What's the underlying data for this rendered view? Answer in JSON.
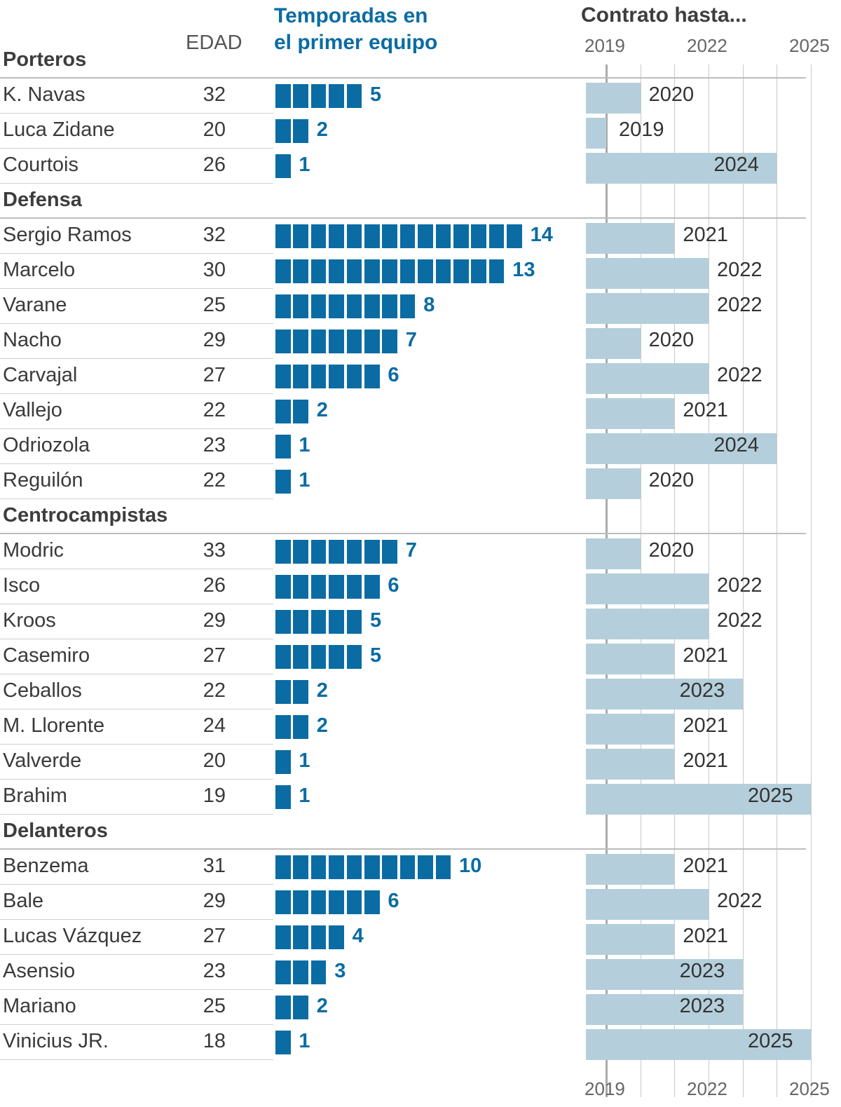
{
  "headers": {
    "age": "EDAD",
    "seasons_line1": "Temporadas en",
    "seasons_line2": "el primer equipo",
    "contract": "Contrato hasta..."
  },
  "colors": {
    "seasons": "#0a6ca3",
    "contract": "#b4cfdb",
    "text": "#3a3a3a"
  },
  "chart_data": {
    "type": "table",
    "contract_axis": {
      "ticks": [
        "2019",
        "2022",
        "2025"
      ],
      "range": [
        2019,
        2025
      ],
      "grid": "yearly"
    },
    "groups": [
      {
        "name": "Porteros",
        "players": [
          {
            "name": "K. Navas",
            "age": "32",
            "seasons": 5,
            "seasons_label": "5",
            "contract": 2020,
            "contract_label": "2020"
          },
          {
            "name": "Luca Zidane",
            "age": "20",
            "seasons": 2,
            "seasons_label": "2",
            "contract": 2019,
            "contract_label": "2019"
          },
          {
            "name": "Courtois",
            "age": "26",
            "seasons": 1,
            "seasons_label": "1",
            "contract": 2024,
            "contract_label": "2024"
          }
        ]
      },
      {
        "name": "Defensa",
        "players": [
          {
            "name": "Sergio Ramos",
            "age": "32",
            "seasons": 14,
            "seasons_label": "14",
            "contract": 2021,
            "contract_label": "2021"
          },
          {
            "name": "Marcelo",
            "age": "30",
            "seasons": 13,
            "seasons_label": "13",
            "contract": 2022,
            "contract_label": "2022"
          },
          {
            "name": "Varane",
            "age": "25",
            "seasons": 8,
            "seasons_label": "8",
            "contract": 2022,
            "contract_label": "2022"
          },
          {
            "name": "Nacho",
            "age": "29",
            "seasons": 7,
            "seasons_label": "7",
            "contract": 2020,
            "contract_label": "2020"
          },
          {
            "name": "Carvajal",
            "age": "27",
            "seasons": 6,
            "seasons_label": "6",
            "contract": 2022,
            "contract_label": "2022"
          },
          {
            "name": "Vallejo",
            "age": "22",
            "seasons": 2,
            "seasons_label": "2",
            "contract": 2021,
            "contract_label": "2021"
          },
          {
            "name": "Odriozola",
            "age": "23",
            "seasons": 1,
            "seasons_label": "1",
            "contract": 2024,
            "contract_label": "2024"
          },
          {
            "name": "Reguilón",
            "age": "22",
            "seasons": 1,
            "seasons_label": "1",
            "contract": 2020,
            "contract_label": "2020"
          }
        ]
      },
      {
        "name": "Centrocampistas",
        "players": [
          {
            "name": "Modric",
            "age": "33",
            "seasons": 7,
            "seasons_label": "7",
            "contract": 2020,
            "contract_label": "2020"
          },
          {
            "name": "Isco",
            "age": "26",
            "seasons": 6,
            "seasons_label": "6",
            "contract": 2022,
            "contract_label": "2022"
          },
          {
            "name": "Kroos",
            "age": "29",
            "seasons": 5,
            "seasons_label": "5",
            "contract": 2022,
            "contract_label": "2022"
          },
          {
            "name": "Casemiro",
            "age": "27",
            "seasons": 5,
            "seasons_label": "5",
            "contract": 2021,
            "contract_label": "2021"
          },
          {
            "name": "Ceballos",
            "age": "22",
            "seasons": 2,
            "seasons_label": "2",
            "contract": 2023,
            "contract_label": "2023"
          },
          {
            "name": "M. Llorente",
            "age": "24",
            "seasons": 2,
            "seasons_label": "2",
            "contract": 2021,
            "contract_label": "2021"
          },
          {
            "name": "Valverde",
            "age": "20",
            "seasons": 1,
            "seasons_label": "1",
            "contract": 2021,
            "contract_label": "2021"
          },
          {
            "name": "Brahim",
            "age": "19",
            "seasons": 1,
            "seasons_label": "1",
            "contract": 2025,
            "contract_label": "2025"
          }
        ]
      },
      {
        "name": "Delanteros",
        "players": [
          {
            "name": "Benzema",
            "age": "31",
            "seasons": 10,
            "seasons_label": "10",
            "contract": 2021,
            "contract_label": "2021"
          },
          {
            "name": "Bale",
            "age": "29",
            "seasons": 6,
            "seasons_label": "6",
            "contract": 2022,
            "contract_label": "2022"
          },
          {
            "name": "Lucas Vázquez",
            "age": "27",
            "seasons": 4,
            "seasons_label": "4",
            "contract": 2021,
            "contract_label": "2021"
          },
          {
            "name": "Asensio",
            "age": "23",
            "seasons": 3,
            "seasons_label": "3",
            "contract": 2023,
            "contract_label": "2023"
          },
          {
            "name": "Mariano",
            "age": "25",
            "seasons": 2,
            "seasons_label": "2",
            "contract": 2023,
            "contract_label": "2023"
          },
          {
            "name": "Vinicius JR.",
            "age": "18",
            "seasons": 1,
            "seasons_label": "1",
            "contract": 2025,
            "contract_label": "2025"
          }
        ]
      }
    ]
  }
}
